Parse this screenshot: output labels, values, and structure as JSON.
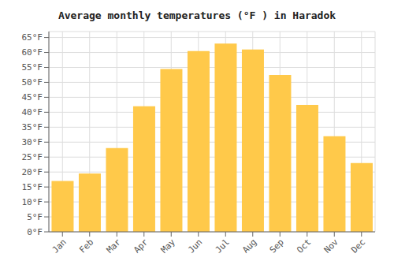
{
  "chart_data": {
    "type": "bar",
    "title": "Average monthly temperatures (°F ) in Haradok",
    "categories": [
      "Jan",
      "Feb",
      "Mar",
      "Apr",
      "May",
      "Jun",
      "Jul",
      "Aug",
      "Sep",
      "Oct",
      "Nov",
      "Dec"
    ],
    "values": [
      17,
      19.5,
      28,
      42,
      54.5,
      60.5,
      63,
      61,
      52.5,
      42.5,
      32,
      23
    ],
    "color": "#FFC94A",
    "ylim": [
      0,
      67
    ],
    "yticks": [
      {
        "value": 0,
        "label": "0°F"
      },
      {
        "value": 5,
        "label": "5°F"
      },
      {
        "value": 10,
        "label": "10°F"
      },
      {
        "value": 15,
        "label": "15°F"
      },
      {
        "value": 20,
        "label": "20°F"
      },
      {
        "value": 25,
        "label": "25°F"
      },
      {
        "value": 30,
        "label": "30°F"
      },
      {
        "value": 35,
        "label": "35°F"
      },
      {
        "value": 40,
        "label": "40°F"
      },
      {
        "value": 45,
        "label": "45°F"
      },
      {
        "value": 50,
        "label": "50°F"
      },
      {
        "value": 55,
        "label": "55°F"
      },
      {
        "value": 60,
        "label": "60°F"
      },
      {
        "value": 65,
        "label": "65°F"
      }
    ],
    "grid": true
  }
}
